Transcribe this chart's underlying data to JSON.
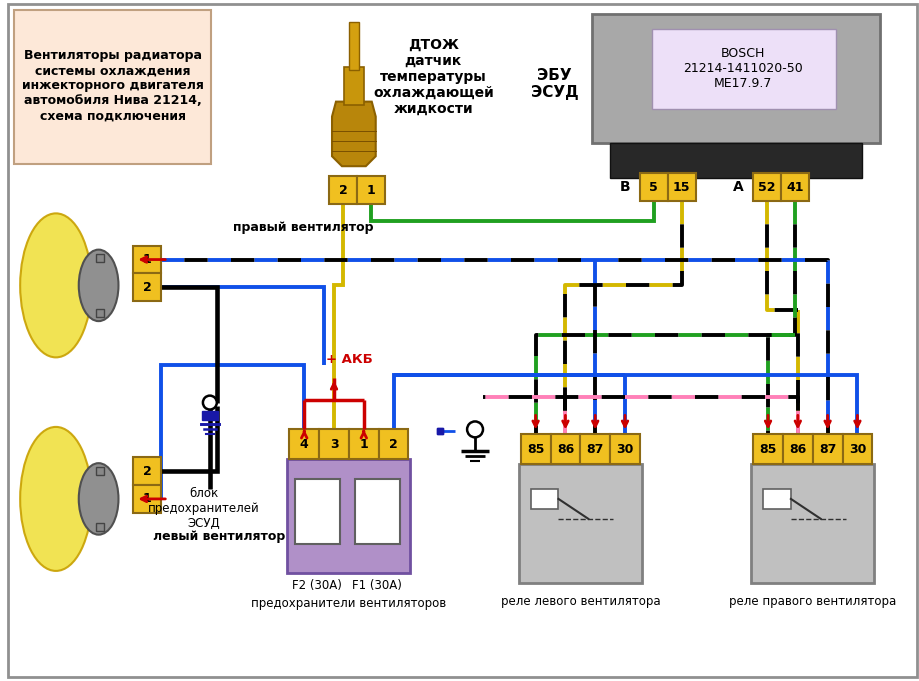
{
  "title": "Вентиляторы радиатора\nсистемы охлаждения\nинжекторного двигателя\nавтомобиля Нива 21214,\nсхема подключения",
  "ebu_label": "ЭБУ\nЭСУД",
  "ebu_box_text": "BOSCH\n21214-1411020-50\nME17.9.7",
  "dtoj_label": "ДТОЖ\nдатчик\nтемпературы\nохлаждающей\nжидкости",
  "right_fan_label": "правый вентилятор",
  "left_fan_label": "левый вентилятор",
  "fuse_label": "блок\nпредохранителей\nЭСУД",
  "fuse_bottom_label": "предохранители вентиляторов",
  "relay_left_label": "реле левого вентилятора",
  "relay_right_label": "реле правого вентилятора",
  "akb_label": "+ АКБ",
  "conn_B_label": "В",
  "conn_A_label": "А",
  "bg_color": "#ffffff",
  "title_box_color": "#fde8d8",
  "connector_color": "#f0c020",
  "connector_edge": "#8b6914",
  "relay_body_color": "#c0c0c0",
  "relay_body_edge": "#808080",
  "fuse_body_color": "#b090c8",
  "fuse_body_edge": "#7050a0",
  "ecu_body_color": "#a8a8a8",
  "ecu_body_edge": "#707070",
  "ecu_label_color": "#ede0f8",
  "black_connector": "#282828",
  "wire_blue": "#1050e8",
  "wire_green": "#20a020",
  "wire_yellow": "#d4b800",
  "wire_black": "#000000",
  "wire_pink": "#ff80b8",
  "wire_red": "#cc0000",
  "fan_blade_color": "#f0e040",
  "fan_hub_color": "#909090"
}
